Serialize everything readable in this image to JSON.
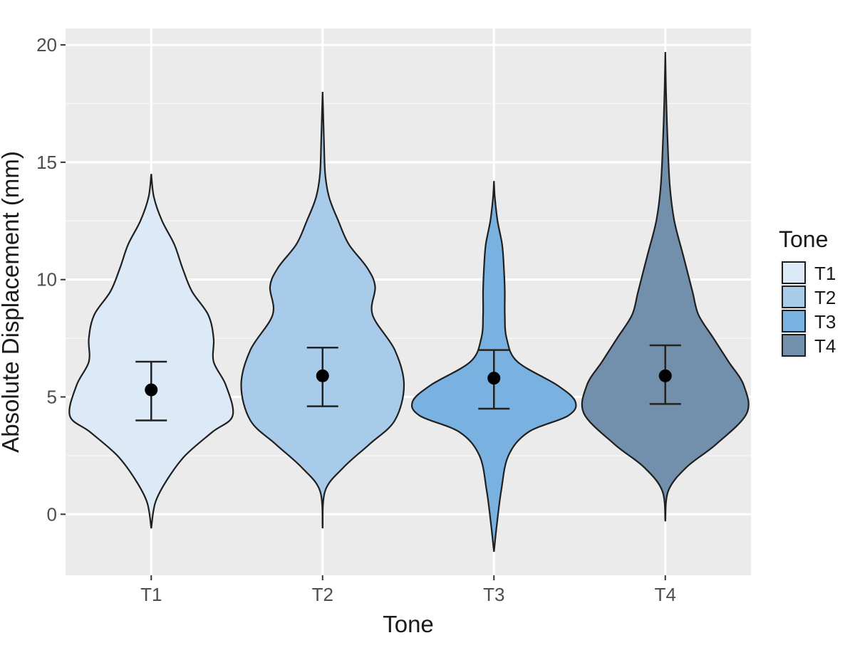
{
  "chart_data": {
    "type": "violin",
    "xlabel": "Tone",
    "ylabel": "Absolute Displacement (mm)",
    "categories": [
      "T1",
      "T2",
      "T3",
      "T4"
    ],
    "ylim": [
      -2.6,
      20.7
    ],
    "yticks": [
      0,
      5,
      10,
      15,
      20
    ],
    "grid": true,
    "legend": {
      "title": "Tone",
      "position": "right",
      "entries": [
        "T1",
        "T2",
        "T3",
        "T4"
      ]
    },
    "colors": {
      "T1": "#dce9f7",
      "T2": "#a9cbea",
      "T3": "#79b2e0",
      "T4": "#728fab",
      "panel": "#ebebeb",
      "grid": "#ffffff"
    },
    "series": [
      {
        "category": "T1",
        "mean": 5.3,
        "ci_low": 4.0,
        "ci_high": 6.5,
        "range": [
          -0.6,
          14.5
        ],
        "density": [
          [
            -0.6,
            0.0
          ],
          [
            0.5,
            0.03
          ],
          [
            1.5,
            0.12
          ],
          [
            2.5,
            0.25
          ],
          [
            3.5,
            0.45
          ],
          [
            4.2,
            0.6
          ],
          [
            5.5,
            0.55
          ],
          [
            6.5,
            0.46
          ],
          [
            7.5,
            0.46
          ],
          [
            8.5,
            0.42
          ],
          [
            9.5,
            0.3
          ],
          [
            10.5,
            0.23
          ],
          [
            11.5,
            0.17
          ],
          [
            12.5,
            0.08
          ],
          [
            13.5,
            0.02
          ],
          [
            14.5,
            0.0
          ]
        ]
      },
      {
        "category": "T2",
        "mean": 5.9,
        "ci_low": 4.6,
        "ci_high": 7.1,
        "range": [
          -0.6,
          18.0
        ],
        "density": [
          [
            -0.6,
            0.0
          ],
          [
            1.0,
            0.02
          ],
          [
            2.0,
            0.16
          ],
          [
            3.0,
            0.36
          ],
          [
            4.0,
            0.55
          ],
          [
            5.5,
            0.62
          ],
          [
            7.0,
            0.55
          ],
          [
            8.5,
            0.38
          ],
          [
            9.7,
            0.4
          ],
          [
            10.5,
            0.34
          ],
          [
            11.5,
            0.2
          ],
          [
            12.5,
            0.12
          ],
          [
            13.5,
            0.05
          ],
          [
            14.5,
            0.02
          ],
          [
            16.0,
            0.01
          ],
          [
            18.0,
            0.0
          ]
        ]
      },
      {
        "category": "T3",
        "mean": 5.8,
        "ci_low": 4.5,
        "ci_high": 7.0,
        "range": [
          -1.6,
          14.2
        ],
        "density": [
          [
            -1.6,
            0.0
          ],
          [
            -0.5,
            0.03
          ],
          [
            1.0,
            0.08
          ],
          [
            2.5,
            0.16
          ],
          [
            3.5,
            0.38
          ],
          [
            4.2,
            0.82
          ],
          [
            4.8,
            0.9
          ],
          [
            5.5,
            0.7
          ],
          [
            6.5,
            0.26
          ],
          [
            7.5,
            0.14
          ],
          [
            8.5,
            0.12
          ],
          [
            9.5,
            0.12
          ],
          [
            10.5,
            0.11
          ],
          [
            11.5,
            0.09
          ],
          [
            12.5,
            0.04
          ],
          [
            13.5,
            0.01
          ],
          [
            14.2,
            0.0
          ]
        ]
      },
      {
        "category": "T4",
        "mean": 5.9,
        "ci_low": 4.7,
        "ci_high": 7.2,
        "range": [
          -0.3,
          19.7
        ],
        "density": [
          [
            -0.3,
            0.0
          ],
          [
            1.0,
            0.02
          ],
          [
            2.0,
            0.14
          ],
          [
            3.0,
            0.34
          ],
          [
            4.3,
            0.54
          ],
          [
            5.5,
            0.52
          ],
          [
            6.5,
            0.42
          ],
          [
            7.5,
            0.32
          ],
          [
            8.5,
            0.22
          ],
          [
            9.5,
            0.18
          ],
          [
            11.0,
            0.12
          ],
          [
            12.5,
            0.06
          ],
          [
            14.0,
            0.03
          ],
          [
            16.0,
            0.015
          ],
          [
            18.0,
            0.005
          ],
          [
            19.7,
            0.0
          ]
        ]
      }
    ]
  }
}
